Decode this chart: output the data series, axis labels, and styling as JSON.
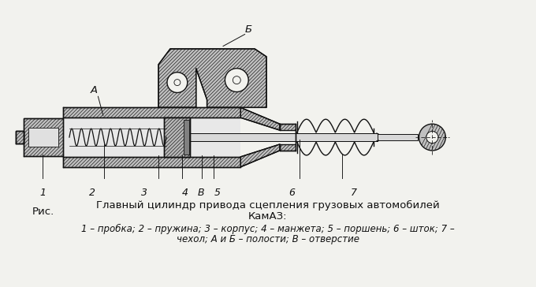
{
  "bg_color": "#f2f2ee",
  "line_color": "#111111",
  "title_line1": "Главный цилиндр привода сцепления грузовых автомобилей",
  "title_line2": "КамАЗ:",
  "caption_line1": "1 – пробка; 2 – пружина; 3 – корпус; 4 – манжета; 5 – поршень; 6 – шток; 7 –",
  "caption_line2": "чехол; А и Б – полости; В – отверстие",
  "ris_label": "Рис.",
  "labels": [
    "1",
    "2",
    "3",
    "4",
    "В",
    "5",
    "6",
    "7"
  ],
  "label_A": "А",
  "label_B": "Б"
}
